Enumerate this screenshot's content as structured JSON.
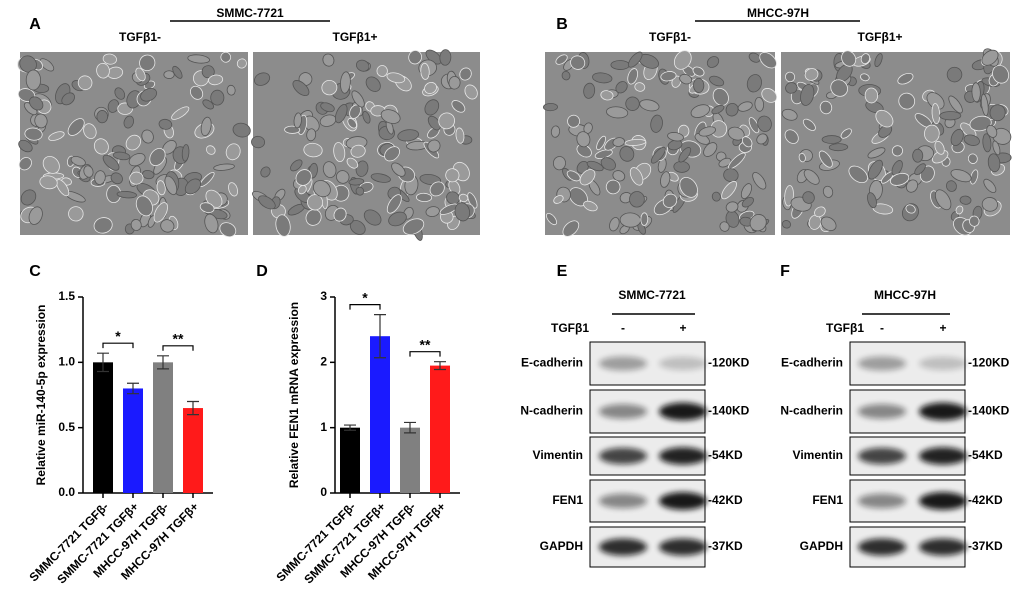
{
  "panels": {
    "A": {
      "letter": "A",
      "cell_line": "SMMC-7721",
      "conditions": [
        "TGFβ1-",
        "TGFβ1+"
      ]
    },
    "B": {
      "letter": "B",
      "cell_line": "MHCC-97H",
      "conditions": [
        "TGFβ1-",
        "TGFβ1+"
      ]
    },
    "E": {
      "letter": "E",
      "cell_line": "SMMC-7721",
      "treatment": "TGFβ1",
      "lanes": [
        "-",
        "+"
      ],
      "proteins": [
        "E-cadherin",
        "N-cadherin",
        "Vimentin",
        "FEN1",
        "GAPDH"
      ],
      "sizes": [
        "-120KD",
        "-140KD",
        "-54KD",
        "-42KD",
        "-37KD"
      ]
    },
    "F": {
      "letter": "F",
      "cell_line": "MHCC-97H",
      "treatment": "TGFβ1",
      "lanes": [
        "-",
        "+"
      ],
      "proteins": [
        "E-cadherin",
        "N-cadherin",
        "Vimentin",
        "FEN1",
        "GAPDH"
      ],
      "sizes": [
        "-120KD",
        "-140KD",
        "-54KD",
        "-42KD",
        "-37KD"
      ]
    }
  },
  "chart_data": [
    {
      "type": "bar",
      "letter": "C",
      "y_label": "Relative miR-140-5p expression",
      "categories": [
        "SMMC-7721 TGFβ-",
        "SMMC-7721 TGFβ+",
        "MHCC-97H TGFβ-",
        "MHCC-97H TGFβ+"
      ],
      "values": [
        1.0,
        0.8,
        1.0,
        0.65
      ],
      "errors": [
        0.07,
        0.04,
        0.05,
        0.05
      ],
      "colors": [
        "#000000",
        "#1a1aff",
        "#808080",
        "#ff1a1a"
      ],
      "ylim": [
        0,
        1.5
      ],
      "yticks": [
        {
          "value": 0,
          "label": "0.0"
        },
        0.5,
        {
          "value": 1,
          "label": "1.0"
        },
        1.5
      ],
      "annotations": [
        "*",
        "**"
      ]
    },
    {
      "type": "bar",
      "letter": "D",
      "y_label": "Relative FEN1 mRNA expression",
      "categories": [
        "SMMC-7721 TGFβ-",
        "SMMC-7721 TGFβ+",
        "MHCC-97H TGFβ-",
        "MHCC-97H TGFβ+"
      ],
      "values": [
        1.0,
        2.4,
        1.0,
        1.95
      ],
      "errors": [
        0.04,
        0.33,
        0.08,
        0.06
      ],
      "colors": [
        "#000000",
        "#1a1aff",
        "#808080",
        "#ff1a1a"
      ],
      "ylim": [
        0,
        3
      ],
      "yticks": [
        0,
        1,
        2,
        3
      ],
      "annotations": [
        "*",
        "**"
      ]
    }
  ]
}
